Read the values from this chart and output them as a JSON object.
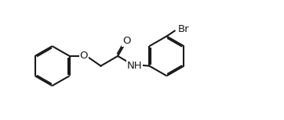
{
  "bg_color": "#ffffff",
  "line_color": "#1a1a1a",
  "line_width": 1.5,
  "font_size": 9.5,
  "figsize": [
    3.62,
    1.54
  ],
  "dpi": 100,
  "xlim": [
    -0.5,
    12.5
  ],
  "ylim": [
    -0.5,
    5.5
  ]
}
